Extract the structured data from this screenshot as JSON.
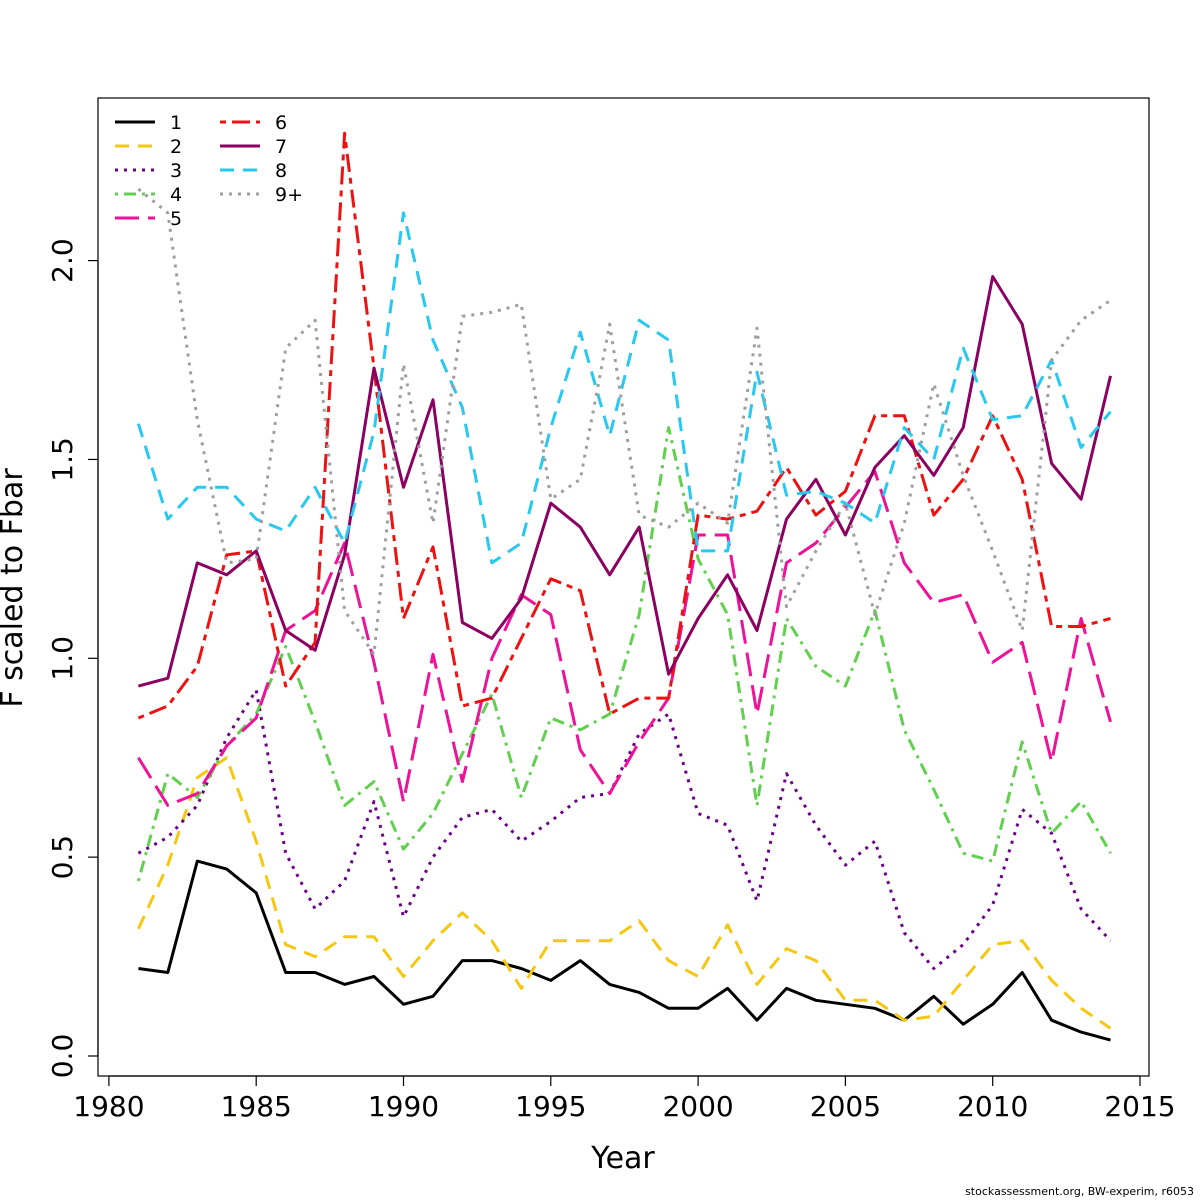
{
  "chart_data": {
    "type": "line",
    "title": "",
    "xlabel": "Year",
    "ylabel": "F scaled to Fbar",
    "xlim": [
      1980,
      2015
    ],
    "ylim": [
      0.0,
      2.35
    ],
    "x_ticks": [
      "1980",
      "1985",
      "1990",
      "1995",
      "2000",
      "2005",
      "2010",
      "2015"
    ],
    "y_ticks": [
      "0.0",
      "0.5",
      "1.0",
      "1.5",
      "2.0"
    ],
    "grid": false,
    "legend_position": "top-left",
    "x": [
      1981,
      1982,
      1983,
      1984,
      1985,
      1986,
      1987,
      1988,
      1989,
      1990,
      1991,
      1992,
      1993,
      1994,
      1995,
      1996,
      1997,
      1998,
      1999,
      2000,
      2001,
      2002,
      2003,
      2004,
      2005,
      2006,
      2007,
      2008,
      2009,
      2010,
      2011,
      2012,
      2013,
      2014
    ],
    "series": [
      {
        "name": "1",
        "color": "#000000",
        "dash": "solid",
        "values": [
          0.22,
          0.21,
          0.49,
          0.47,
          0.41,
          0.21,
          0.21,
          0.18,
          0.2,
          0.13,
          0.15,
          0.24,
          0.24,
          0.22,
          0.19,
          0.24,
          0.18,
          0.16,
          0.12,
          0.12,
          0.17,
          0.09,
          0.17,
          0.14,
          0.13,
          0.12,
          0.09,
          0.15,
          0.08,
          0.13,
          0.21,
          0.09,
          0.06,
          0.04
        ]
      },
      {
        "name": "2",
        "color": "#f5c710",
        "dash": "dashed",
        "values": [
          0.32,
          0.48,
          0.7,
          0.75,
          0.54,
          0.28,
          0.25,
          0.3,
          0.3,
          0.2,
          0.29,
          0.36,
          0.29,
          0.17,
          0.29,
          0.29,
          0.29,
          0.34,
          0.24,
          0.2,
          0.33,
          0.18,
          0.27,
          0.24,
          0.14,
          0.14,
          0.09,
          0.1,
          0.19,
          0.28,
          0.29,
          0.19,
          0.12,
          0.07
        ]
      },
      {
        "name": "3",
        "color": "#6b0089",
        "dash": "dotted",
        "values": [
          0.51,
          0.55,
          0.63,
          0.8,
          0.92,
          0.51,
          0.37,
          0.44,
          0.64,
          0.35,
          0.5,
          0.6,
          0.62,
          0.54,
          0.59,
          0.65,
          0.66,
          0.81,
          0.86,
          0.61,
          0.58,
          0.39,
          0.71,
          0.58,
          0.48,
          0.54,
          0.31,
          0.22,
          0.28,
          0.38,
          0.62,
          0.56,
          0.37,
          0.29
        ]
      },
      {
        "name": "4",
        "color": "#61d04f",
        "dash": "dashdot",
        "values": [
          0.44,
          0.71,
          0.65,
          0.78,
          0.86,
          1.03,
          0.84,
          0.63,
          0.69,
          0.52,
          0.61,
          0.76,
          0.91,
          0.65,
          0.85,
          0.82,
          0.86,
          1.11,
          1.58,
          1.25,
          1.11,
          0.63,
          1.1,
          0.98,
          0.93,
          1.12,
          0.82,
          0.67,
          0.51,
          0.49,
          0.79,
          0.56,
          0.64,
          0.51
        ]
      },
      {
        "name": "5",
        "color": "#ee1199",
        "dash": "longdash",
        "values": [
          0.75,
          0.63,
          0.66,
          0.78,
          0.85,
          1.07,
          1.12,
          1.29,
          0.99,
          0.64,
          1.01,
          0.69,
          1.0,
          1.16,
          1.11,
          0.77,
          0.66,
          0.79,
          0.9,
          1.31,
          1.31,
          0.86,
          1.24,
          1.29,
          1.38,
          1.47,
          1.24,
          1.14,
          1.16,
          0.99,
          1.04,
          0.74,
          1.1,
          0.84
        ]
      },
      {
        "name": "6",
        "color": "#ee1111",
        "dash": "twodash",
        "values": [
          0.85,
          0.88,
          0.98,
          1.26,
          1.27,
          0.93,
          1.04,
          2.32,
          1.73,
          1.1,
          1.28,
          0.88,
          0.9,
          1.05,
          1.2,
          1.17,
          0.86,
          0.9,
          0.9,
          1.36,
          1.35,
          1.37,
          1.48,
          1.36,
          1.42,
          1.61,
          1.61,
          1.36,
          1.45,
          1.61,
          1.45,
          1.08,
          1.08,
          1.1
        ]
      },
      {
        "name": "7",
        "color": "#8b0060",
        "dash": "solid",
        "values": [
          0.93,
          0.95,
          1.24,
          1.21,
          1.27,
          1.07,
          1.02,
          1.26,
          1.73,
          1.43,
          1.65,
          1.09,
          1.05,
          1.15,
          1.39,
          1.33,
          1.21,
          1.33,
          0.96,
          1.1,
          1.21,
          1.07,
          1.35,
          1.45,
          1.31,
          1.48,
          1.56,
          1.46,
          1.58,
          1.96,
          1.84,
          1.49,
          1.4,
          1.71
        ]
      },
      {
        "name": "8",
        "color": "#28c8f0",
        "dash": "dashed",
        "values": [
          1.59,
          1.35,
          1.43,
          1.43,
          1.35,
          1.32,
          1.43,
          1.29,
          1.57,
          2.12,
          1.8,
          1.63,
          1.24,
          1.29,
          1.58,
          1.82,
          1.56,
          1.85,
          1.8,
          1.27,
          1.27,
          1.72,
          1.41,
          1.42,
          1.39,
          1.34,
          1.58,
          1.5,
          1.78,
          1.6,
          1.61,
          1.75,
          1.53,
          1.62
        ]
      },
      {
        "name": "9+",
        "color": "#9e9e9e",
        "dash": "dotted",
        "values": [
          2.18,
          2.12,
          1.6,
          1.24,
          1.25,
          1.78,
          1.85,
          1.12,
          1.01,
          1.74,
          1.34,
          1.86,
          1.87,
          1.89,
          1.4,
          1.45,
          1.84,
          1.36,
          1.33,
          1.39,
          1.34,
          1.83,
          1.13,
          1.27,
          1.39,
          1.11,
          1.34,
          1.69,
          1.46,
          1.27,
          1.07,
          1.75,
          1.85,
          1.9
        ]
      }
    ]
  },
  "footer": {
    "credit": "stockassessment.org, BW-experim, r6053"
  }
}
